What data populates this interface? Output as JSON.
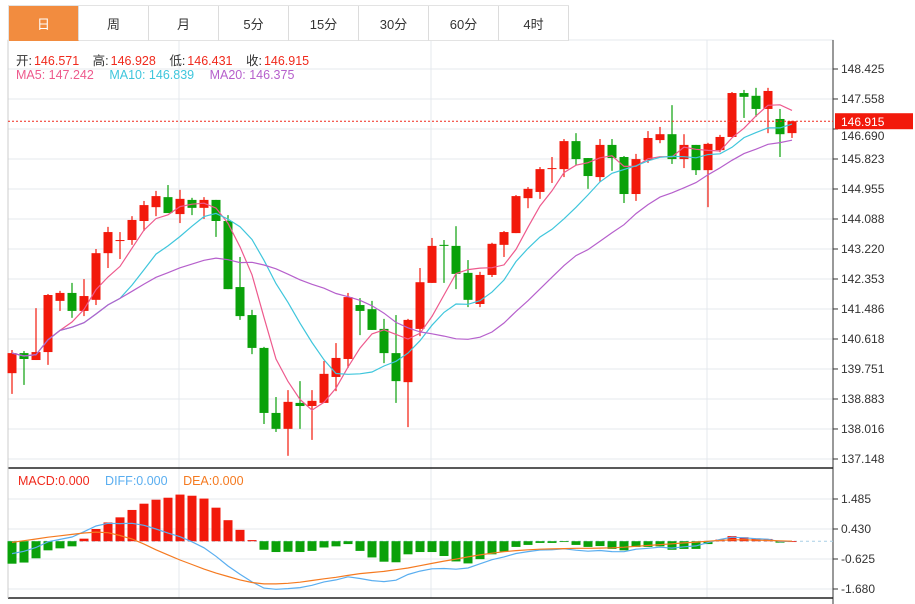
{
  "tabs": [
    {
      "label": "日",
      "active": true
    },
    {
      "label": "周"
    },
    {
      "label": "月"
    },
    {
      "label": "5分"
    },
    {
      "label": "15分"
    },
    {
      "label": "30分"
    },
    {
      "label": "60分"
    },
    {
      "label": "4时"
    }
  ],
  "ohlc_legend": {
    "open_label": "开:",
    "open": "146.571",
    "high_label": "高:",
    "high": "146.928",
    "low_label": "低:",
    "low": "146.431",
    "close_label": "收:",
    "close": "146.915"
  },
  "ma_legend": {
    "ma5": "MA5: 147.242",
    "ma10": "MA10: 146.839",
    "ma20": "MA20: 146.375"
  },
  "macd_legend": {
    "macd": "MACD:0.000",
    "diff": "DIFF:0.000",
    "dea": "DEA:0.000"
  },
  "colors": {
    "up": "#f2190b",
    "down": "#0aa10a",
    "ma5": "#ee5a8d",
    "ma10": "#3fc6dc",
    "ma20": "#b660cc",
    "diff": "#5aaef0",
    "dea": "#f57a20",
    "accent": "#f28c3f"
  },
  "chart_data": [
    {
      "type": "candlestick",
      "current_price": "146.915",
      "y_ticks": [
        "148.425",
        "147.558",
        "146.690",
        "145.823",
        "144.955",
        "144.088",
        "143.220",
        "142.353",
        "141.486",
        "140.618",
        "139.751",
        "138.883",
        "138.016",
        "137.148"
      ],
      "ylim": [
        137.148,
        148.425
      ],
      "ohlc": [
        [
          139.63,
          140.3,
          139.03,
          140.21
        ],
        [
          140.21,
          140.27,
          139.29,
          140.04
        ],
        [
          140.01,
          141.51,
          140.01,
          140.24
        ],
        [
          140.24,
          141.92,
          139.87,
          141.89
        ],
        [
          141.72,
          142.01,
          141.43,
          141.95
        ],
        [
          141.95,
          142.24,
          141.23,
          141.43
        ],
        [
          141.43,
          142.35,
          141.28,
          141.86
        ],
        [
          141.75,
          143.22,
          141.6,
          143.1
        ],
        [
          143.1,
          143.86,
          142.67,
          143.71
        ],
        [
          143.45,
          143.71,
          142.93,
          143.48
        ],
        [
          143.48,
          144.17,
          143.34,
          144.06
        ],
        [
          144.03,
          144.61,
          143.74,
          144.49
        ],
        [
          144.43,
          144.9,
          144.17,
          144.75
        ],
        [
          144.72,
          145.07,
          144.26,
          144.26
        ],
        [
          144.23,
          144.93,
          143.97,
          144.67
        ],
        [
          144.64,
          144.7,
          144.2,
          144.41
        ],
        [
          144.41,
          144.72,
          144.09,
          144.64
        ],
        [
          144.64,
          144.64,
          143.57,
          144.03
        ],
        [
          144.03,
          144.2,
          142.06,
          142.06
        ],
        [
          142.12,
          142.99,
          141.17,
          141.28
        ],
        [
          141.31,
          141.46,
          140.18,
          140.36
        ],
        [
          140.36,
          140.39,
          138.16,
          138.48
        ],
        [
          138.48,
          138.94,
          137.93,
          138.02
        ],
        [
          138.02,
          139.14,
          137.24,
          138.8
        ],
        [
          138.77,
          139.4,
          138.02,
          138.68
        ],
        [
          138.68,
          139.14,
          137.7,
          138.83
        ],
        [
          138.77,
          139.98,
          138.77,
          139.61
        ],
        [
          139.52,
          140.5,
          139.11,
          140.07
        ],
        [
          140.04,
          141.95,
          139.78,
          141.83
        ],
        [
          141.6,
          141.8,
          140.73,
          141.43
        ],
        [
          141.48,
          141.72,
          140.88,
          140.88
        ],
        [
          140.91,
          141.2,
          139.92,
          140.21
        ],
        [
          140.21,
          141.31,
          138.77,
          139.4
        ],
        [
          139.37,
          141.2,
          138.07,
          141.17
        ],
        [
          140.91,
          142.67,
          140.7,
          142.26
        ],
        [
          142.24,
          143.54,
          142.24,
          143.31
        ],
        [
          143.34,
          143.48,
          142.24,
          143.31
        ],
        [
          143.31,
          143.88,
          142.06,
          142.5
        ],
        [
          142.53,
          142.9,
          141.54,
          141.75
        ],
        [
          141.63,
          142.56,
          141.54,
          142.47
        ],
        [
          142.47,
          143.4,
          142.41,
          143.37
        ],
        [
          143.34,
          143.74,
          142.99,
          143.71
        ],
        [
          143.68,
          144.78,
          143.68,
          144.75
        ],
        [
          144.69,
          145.01,
          144.4,
          144.96
        ],
        [
          144.87,
          145.59,
          144.67,
          145.53
        ],
        [
          145.53,
          145.88,
          145.13,
          145.56
        ],
        [
          145.53,
          146.4,
          145.3,
          146.34
        ],
        [
          146.34,
          146.57,
          145.65,
          145.82
        ],
        [
          145.85,
          145.85,
          144.96,
          145.33
        ],
        [
          145.3,
          146.4,
          145.16,
          146.23
        ],
        [
          146.23,
          146.4,
          145.48,
          145.85
        ],
        [
          145.88,
          145.91,
          144.55,
          144.81
        ],
        [
          144.81,
          145.97,
          144.61,
          145.82
        ],
        [
          145.79,
          146.63,
          145.71,
          146.43
        ],
        [
          146.37,
          146.75,
          146.28,
          146.54
        ],
        [
          146.54,
          147.38,
          145.68,
          145.82
        ],
        [
          145.82,
          146.54,
          145.56,
          146.23
        ],
        [
          146.23,
          146.23,
          145.36,
          145.5
        ],
        [
          145.5,
          146.29,
          144.43,
          146.26
        ],
        [
          146.08,
          146.52,
          146.02,
          146.46
        ],
        [
          146.46,
          147.76,
          146.46,
          147.73
        ],
        [
          147.73,
          147.82,
          147.01,
          147.62
        ],
        [
          147.65,
          147.88,
          147.04,
          147.27
        ],
        [
          147.27,
          147.88,
          146.57,
          147.79
        ],
        [
          146.98,
          147.27,
          145.88,
          146.54
        ],
        [
          146.571,
          146.928,
          146.431,
          146.915
        ]
      ],
      "ma_periods": [
        5,
        10,
        20
      ]
    },
    {
      "type": "bar+line",
      "name": "MACD",
      "y_ticks": [
        "1.485",
        "0.430",
        "-0.625",
        "-1.680"
      ],
      "ylim": [
        -1.68,
        1.485
      ],
      "macd": [
        -0.79,
        -0.75,
        -0.6,
        -0.32,
        -0.25,
        -0.18,
        0.09,
        0.43,
        0.66,
        0.84,
        1.1,
        1.32,
        1.46,
        1.53,
        1.64,
        1.6,
        1.5,
        1.18,
        0.74,
        0.4,
        0.04,
        -0.3,
        -0.38,
        -0.37,
        -0.38,
        -0.34,
        -0.22,
        -0.18,
        -0.1,
        -0.34,
        -0.57,
        -0.72,
        -0.74,
        -0.46,
        -0.38,
        -0.38,
        -0.52,
        -0.71,
        -0.78,
        -0.63,
        -0.46,
        -0.36,
        -0.2,
        -0.13,
        -0.06,
        -0.06,
        -0.01,
        -0.13,
        -0.2,
        -0.17,
        -0.27,
        -0.32,
        -0.2,
        -0.2,
        -0.18,
        -0.3,
        -0.27,
        -0.27,
        -0.1,
        0.06,
        0.18,
        0.14,
        0.1,
        0.08,
        -0.05,
        0.0
      ],
      "dea": [
        -0.04,
        0.02,
        0.08,
        0.14,
        0.19,
        0.24,
        0.29,
        0.32,
        0.3,
        0.2,
        0.08,
        -0.1,
        -0.3,
        -0.48,
        -0.66,
        -0.82,
        -0.98,
        -1.12,
        -1.24,
        -1.36,
        -1.45,
        -1.5,
        -1.5,
        -1.48,
        -1.44,
        -1.38,
        -1.32,
        -1.27,
        -1.2,
        -1.14,
        -1.1,
        -1.06,
        -1.0,
        -0.94,
        -0.86,
        -0.78,
        -0.7,
        -0.63,
        -0.55,
        -0.48,
        -0.42,
        -0.37,
        -0.33,
        -0.3,
        -0.28,
        -0.27,
        -0.26,
        -0.25,
        -0.25,
        -0.24,
        -0.23,
        -0.21,
        -0.18,
        -0.15,
        -0.12,
        -0.09,
        -0.06,
        -0.03,
        0.0,
        0.03,
        0.05,
        0.05,
        0.04,
        0.03,
        0.01,
        0.0
      ]
    }
  ]
}
